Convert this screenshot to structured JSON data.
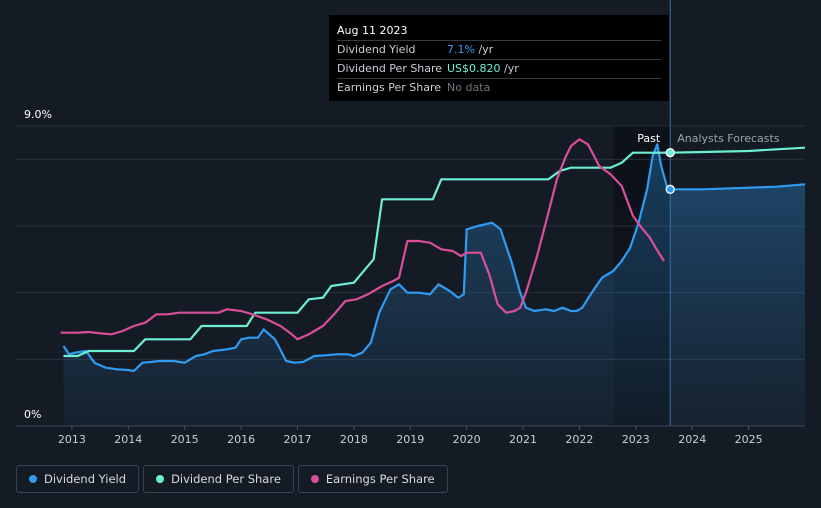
{
  "tooltip": {
    "date": "Aug 11 2023",
    "rows": [
      {
        "label": "Dividend Yield",
        "value": "7.1%",
        "unit": " /yr",
        "color": "#3b9cf0"
      },
      {
        "label": "Dividend Per Share",
        "value": "US$0.820",
        "unit": " /yr",
        "color": "#6ff0d4"
      },
      {
        "label": "Earnings Per Share",
        "value": "No data",
        "unit": "",
        "color": "#6b7480"
      }
    ]
  },
  "legend": [
    {
      "label": "Dividend Yield",
      "color": "#2f9bf2"
    },
    {
      "label": "Dividend Per Share",
      "color": "#6cf0d2"
    },
    {
      "label": "Earnings Per Share",
      "color": "#d94f9c"
    }
  ],
  "chart_data": {
    "type": "line",
    "y_top_label": "9.0%",
    "y_bottom_label": "0%",
    "ylim": [
      0,
      9
    ],
    "xlim": [
      2012.7,
      2026.0
    ],
    "x_ticks": [
      "2013",
      "2014",
      "2015",
      "2016",
      "2017",
      "2018",
      "2019",
      "2020",
      "2021",
      "2022",
      "2023",
      "2024",
      "2025"
    ],
    "past_label": "Past",
    "forecast_label": "Analysts Forecasts",
    "forecast_start": 2023.61,
    "shade_start": 2022.6,
    "grid": true,
    "series": [
      {
        "name": "Dividend Yield",
        "color": "#2f9bf2",
        "fill": true,
        "points": [
          [
            2012.85,
            2.4
          ],
          [
            2012.95,
            2.15
          ],
          [
            2013.05,
            2.2
          ],
          [
            2013.25,
            2.25
          ],
          [
            2013.4,
            1.9
          ],
          [
            2013.6,
            1.75
          ],
          [
            2013.8,
            1.7
          ],
          [
            2014.0,
            1.68
          ],
          [
            2014.1,
            1.65
          ],
          [
            2014.25,
            1.9
          ],
          [
            2014.4,
            1.92
          ],
          [
            2014.55,
            1.95
          ],
          [
            2014.8,
            1.95
          ],
          [
            2015.0,
            1.9
          ],
          [
            2015.2,
            2.1
          ],
          [
            2015.35,
            2.15
          ],
          [
            2015.5,
            2.25
          ],
          [
            2015.75,
            2.3
          ],
          [
            2015.9,
            2.35
          ],
          [
            2016.0,
            2.6
          ],
          [
            2016.15,
            2.65
          ],
          [
            2016.3,
            2.65
          ],
          [
            2016.4,
            2.9
          ],
          [
            2016.6,
            2.6
          ],
          [
            2016.8,
            1.95
          ],
          [
            2016.95,
            1.9
          ],
          [
            2017.1,
            1.92
          ],
          [
            2017.3,
            2.1
          ],
          [
            2017.5,
            2.12
          ],
          [
            2017.7,
            2.15
          ],
          [
            2017.9,
            2.15
          ],
          [
            2018.0,
            2.1
          ],
          [
            2018.15,
            2.2
          ],
          [
            2018.3,
            2.5
          ],
          [
            2018.45,
            3.4
          ],
          [
            2018.65,
            4.1
          ],
          [
            2018.8,
            4.25
          ],
          [
            2018.95,
            4.0
          ],
          [
            2019.15,
            4.0
          ],
          [
            2019.35,
            3.95
          ],
          [
            2019.5,
            4.25
          ],
          [
            2019.7,
            4.05
          ],
          [
            2019.85,
            3.85
          ],
          [
            2019.95,
            3.95
          ],
          [
            2020.0,
            5.9
          ],
          [
            2020.2,
            6.0
          ],
          [
            2020.45,
            6.1
          ],
          [
            2020.6,
            5.9
          ],
          [
            2020.8,
            4.9
          ],
          [
            2020.95,
            4.0
          ],
          [
            2021.05,
            3.55
          ],
          [
            2021.2,
            3.45
          ],
          [
            2021.4,
            3.5
          ],
          [
            2021.55,
            3.45
          ],
          [
            2021.7,
            3.55
          ],
          [
            2021.85,
            3.45
          ],
          [
            2021.95,
            3.45
          ],
          [
            2022.05,
            3.55
          ],
          [
            2022.2,
            3.95
          ],
          [
            2022.4,
            4.45
          ],
          [
            2022.6,
            4.65
          ],
          [
            2022.75,
            4.95
          ],
          [
            2022.9,
            5.35
          ],
          [
            2023.05,
            6.1
          ],
          [
            2023.2,
            7.1
          ],
          [
            2023.3,
            8.1
          ],
          [
            2023.38,
            8.45
          ],
          [
            2023.45,
            7.8
          ],
          [
            2023.55,
            7.2
          ],
          [
            2023.61,
            7.1
          ]
        ]
      },
      {
        "name": "Dividend Per Share",
        "color": "#6cf0d2",
        "points": [
          [
            2012.85,
            2.1
          ],
          [
            2013.1,
            2.1
          ],
          [
            2013.3,
            2.25
          ],
          [
            2014.1,
            2.25
          ],
          [
            2014.3,
            2.6
          ],
          [
            2015.1,
            2.6
          ],
          [
            2015.3,
            3.0
          ],
          [
            2016.1,
            3.0
          ],
          [
            2016.25,
            3.4
          ],
          [
            2017.0,
            3.4
          ],
          [
            2017.2,
            3.8
          ],
          [
            2017.45,
            3.85
          ],
          [
            2017.6,
            4.2
          ],
          [
            2017.8,
            4.25
          ],
          [
            2018.0,
            4.3
          ],
          [
            2018.15,
            4.6
          ],
          [
            2018.35,
            5.0
          ],
          [
            2018.5,
            6.8
          ],
          [
            2018.65,
            6.8
          ],
          [
            2019.4,
            6.8
          ],
          [
            2019.55,
            7.4
          ],
          [
            2021.45,
            7.4
          ],
          [
            2021.65,
            7.65
          ],
          [
            2021.85,
            7.75
          ],
          [
            2022.55,
            7.75
          ],
          [
            2022.75,
            7.9
          ],
          [
            2022.95,
            8.2
          ],
          [
            2023.61,
            8.2
          ]
        ]
      },
      {
        "name": "Earnings Per Share",
        "color": "#d94f9c",
        "points": [
          [
            2012.8,
            2.8
          ],
          [
            2013.1,
            2.8
          ],
          [
            2013.3,
            2.82
          ],
          [
            2013.5,
            2.78
          ],
          [
            2013.7,
            2.75
          ],
          [
            2013.9,
            2.85
          ],
          [
            2014.1,
            3.0
          ],
          [
            2014.3,
            3.1
          ],
          [
            2014.5,
            3.35
          ],
          [
            2014.7,
            3.35
          ],
          [
            2014.9,
            3.4
          ],
          [
            2015.1,
            3.4
          ],
          [
            2015.35,
            3.4
          ],
          [
            2015.6,
            3.4
          ],
          [
            2015.75,
            3.5
          ],
          [
            2016.0,
            3.45
          ],
          [
            2016.2,
            3.35
          ],
          [
            2016.45,
            3.2
          ],
          [
            2016.7,
            3.0
          ],
          [
            2016.9,
            2.75
          ],
          [
            2017.0,
            2.6
          ],
          [
            2017.2,
            2.75
          ],
          [
            2017.45,
            3.0
          ],
          [
            2017.65,
            3.35
          ],
          [
            2017.85,
            3.75
          ],
          [
            2018.05,
            3.8
          ],
          [
            2018.25,
            3.95
          ],
          [
            2018.5,
            4.2
          ],
          [
            2018.7,
            4.35
          ],
          [
            2018.8,
            4.45
          ],
          [
            2018.95,
            5.55
          ],
          [
            2019.15,
            5.55
          ],
          [
            2019.35,
            5.5
          ],
          [
            2019.55,
            5.3
          ],
          [
            2019.75,
            5.25
          ],
          [
            2019.9,
            5.1
          ],
          [
            2020.0,
            5.2
          ],
          [
            2020.25,
            5.2
          ],
          [
            2020.4,
            4.55
          ],
          [
            2020.55,
            3.65
          ],
          [
            2020.7,
            3.4
          ],
          [
            2020.85,
            3.45
          ],
          [
            2020.95,
            3.55
          ],
          [
            2021.05,
            4.0
          ],
          [
            2021.25,
            5.1
          ],
          [
            2021.45,
            6.4
          ],
          [
            2021.6,
            7.4
          ],
          [
            2021.75,
            8.05
          ],
          [
            2021.85,
            8.4
          ],
          [
            2022.0,
            8.6
          ],
          [
            2022.15,
            8.45
          ],
          [
            2022.35,
            7.8
          ],
          [
            2022.55,
            7.55
          ],
          [
            2022.75,
            7.2
          ],
          [
            2022.95,
            6.3
          ],
          [
            2023.1,
            5.95
          ],
          [
            2023.25,
            5.65
          ],
          [
            2023.35,
            5.35
          ],
          [
            2023.5,
            4.95
          ]
        ]
      }
    ],
    "forecasts": [
      {
        "name": "Dividend Yield",
        "color": "#2f9bf2",
        "fill": true,
        "points": [
          [
            2023.61,
            7.1
          ],
          [
            2024.2,
            7.1
          ],
          [
            2025.0,
            7.15
          ],
          [
            2025.5,
            7.18
          ],
          [
            2026.0,
            7.25
          ]
        ]
      },
      {
        "name": "Dividend Per Share",
        "color": "#6cf0d2",
        "points": [
          [
            2023.61,
            8.2
          ],
          [
            2024.2,
            8.22
          ],
          [
            2025.0,
            8.25
          ],
          [
            2025.5,
            8.3
          ],
          [
            2026.0,
            8.35
          ]
        ]
      }
    ],
    "markers": [
      {
        "x": 2023.61,
        "y": 8.2,
        "color": "#6cf0d2"
      },
      {
        "x": 2023.61,
        "y": 7.1,
        "color": "#2f9bf2"
      }
    ]
  }
}
